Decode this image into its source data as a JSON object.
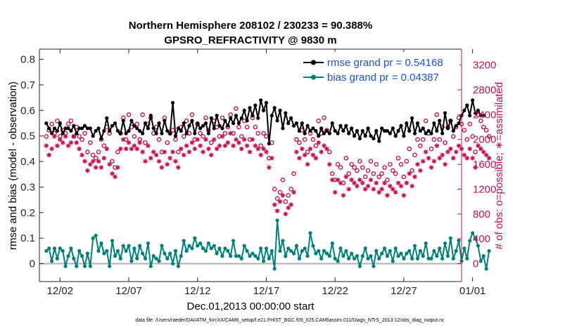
{
  "chart_data": {
    "type": "line",
    "title_line1": "Northern Hemisphere 208102 / 230233 = 90.388%",
    "title_line2": "GPSRO_REFRACTIVITY @ 9830 m",
    "xlabel": "Dec.01,2013 00:00:00 start",
    "ylabel_left": "rmse and bias (model - observation)",
    "ylabel_right": "# of obs: o=possible; ∗=assimilated",
    "xlim": [
      0.5,
      31.2
    ],
    "ylim_left": [
      -0.07,
      0.84
    ],
    "ylim_right": [
      -288,
      3456
    ],
    "x_tick_values": [
      2,
      7,
      12,
      17,
      22,
      27,
      32
    ],
    "x_tick_labels": [
      "12/02",
      "12/07",
      "12/12",
      "12/17",
      "12/22",
      "12/27",
      "01/01"
    ],
    "y_left_ticks": [
      "0",
      "0.1",
      "0.2",
      "0.3",
      "0.4",
      "0.5",
      "0.6",
      "0.7",
      "0.8"
    ],
    "y_left_tick_values": [
      0,
      0.1,
      0.2,
      0.3,
      0.4,
      0.5,
      0.6,
      0.7,
      0.8
    ],
    "y_right_ticks": [
      "0",
      "400",
      "800",
      "1200",
      "1600",
      "2000",
      "2400",
      "2800",
      "3200"
    ],
    "y_right_tick_values": [
      0,
      400,
      800,
      1200,
      1600,
      2000,
      2400,
      2800,
      3200
    ],
    "legend_position": "top-right",
    "colors": {
      "rmse": "#000000",
      "bias": "#00807a",
      "right_axis": "#c8104d",
      "legend_text": "#1a53d8"
    },
    "series": [
      {
        "name": "rmse grand pr = 0.54168",
        "axis": "left",
        "values": [
          0.55,
          0.53,
          0.51,
          0.53,
          0.52,
          0.55,
          0.51,
          0.53,
          0.53,
          0.52,
          0.54,
          0.51,
          0.53,
          0.53,
          0.54,
          0.53,
          0.53,
          0.5,
          0.52,
          0.53,
          0.49,
          0.52,
          0.57,
          0.52,
          0.54,
          0.55,
          0.52,
          0.51,
          0.56,
          0.51,
          0.52,
          0.56,
          0.54,
          0.53,
          0.52,
          0.51,
          0.55,
          0.53,
          0.58,
          0.53,
          0.51,
          0.55,
          0.51,
          0.56,
          0.52,
          0.51,
          0.63,
          0.5,
          0.53,
          0.52,
          0.55,
          0.51,
          0.54,
          0.56,
          0.51,
          0.55,
          0.53,
          0.54,
          0.55,
          0.51,
          0.57,
          0.53,
          0.58,
          0.54,
          0.53,
          0.56,
          0.54,
          0.57,
          0.55,
          0.58,
          0.55,
          0.57,
          0.6,
          0.56,
          0.61,
          0.58,
          0.62,
          0.57,
          0.64,
          0.6,
          0.63,
          0.47,
          0.58,
          0.61,
          0.56,
          0.6,
          0.53,
          0.59,
          0.55,
          0.57,
          0.54,
          0.55,
          0.52,
          0.55,
          0.51,
          0.54,
          0.52,
          0.53,
          0.52,
          0.5,
          0.53,
          0.51,
          0.52,
          0.51,
          0.55,
          0.52,
          0.51,
          0.54,
          0.52,
          0.54,
          0.51,
          0.53,
          0.5,
          0.52,
          0.49,
          0.52,
          0.5,
          0.53,
          0.5,
          0.49,
          0.52,
          0.48,
          0.53,
          0.52,
          0.52,
          0.51,
          0.53,
          0.5,
          0.52,
          0.54,
          0.5,
          0.55,
          0.52,
          0.57,
          0.51,
          0.55,
          0.52,
          0.53,
          0.51,
          0.52,
          0.51,
          0.55,
          0.52,
          0.56,
          0.51,
          0.59,
          0.53,
          0.56,
          0.52,
          0.54,
          0.55,
          0.58,
          0.6,
          0.62,
          0.58,
          0.64,
          0.59,
          0.6,
          0.58,
          0.58
        ]
      },
      {
        "name": "bias grand pr = 0.04387",
        "axis": "left",
        "values": [
          0.05,
          0.06,
          0.01,
          0.06,
          0.02,
          0.06,
          0.05,
          -0.01,
          0.03,
          0.06,
          0.02,
          -0.01,
          0.05,
          0.03,
          -0.01,
          0.04,
          -0.01,
          0.1,
          0.11,
          0.05,
          0.08,
          0.04,
          0.05,
          -0.01,
          0.09,
          0.03,
          0.05,
          0.02,
          0.07,
          0.05,
          0.07,
          0.01,
          0.06,
          0.02,
          0.07,
          0.04,
          0.02,
          0.08,
          -0.01,
          0.03,
          0.02,
          0.01,
          0.07,
          0.04,
          0.02,
          0.04,
          0.0,
          0.05,
          -0.01,
          0.03,
          0.09,
          0.05,
          0.07,
          0.06,
          0.1,
          0.07,
          0.08,
          0.06,
          0.05,
          0.08,
          0.06,
          0.07,
          0.04,
          0.06,
          0.03,
          0.06,
          0.05,
          0.03,
          0.09,
          0.03,
          0.03,
          0.02,
          0.07,
          0.05,
          0.03,
          0.04,
          0.03,
          0.02,
          0.06,
          0.01,
          0.06,
          0.02,
          0.05,
          -0.02,
          0.17,
          0.05,
          0.09,
          0.03,
          0.06,
          0.05,
          0.04,
          0.07,
          0.02,
          0.05,
          0.06,
          0.03,
          0.12,
          0.07,
          0.04,
          0.05,
          0.02,
          0.05,
          0.04,
          0.03,
          0.08,
          0.02,
          0.01,
          0.06,
          0.03,
          0.05,
          0.02,
          0.04,
          0.02,
          0.03,
          -0.01,
          0.03,
          0.06,
          0.02,
          0.03,
          -0.01,
          0.05,
          0.02,
          0.04,
          0.06,
          0.03,
          0.05,
          0.01,
          0.06,
          0.03,
          0.04,
          0.02,
          0.04,
          0.05,
          0.02,
          0.07,
          0.02,
          0.05,
          0.03,
          0.08,
          0.02,
          0.02,
          0.05,
          0.03,
          0.06,
          0.02,
          0.08,
          0.03,
          0.1,
          0.02,
          0.05,
          0.09,
          0.01,
          0.06,
          0.02,
          0.09,
          0.12,
          0.1,
          0.07,
          0.01,
          0.03,
          -0.02,
          0.05
        ]
      },
      {
        "name": "possible",
        "axis": "right",
        "marker": "circle",
        "values": [
          2050,
          2150,
          2250,
          2100,
          2300,
          2050,
          2150,
          2100,
          2250,
          2300,
          2050,
          2200,
          2050,
          2000,
          2100,
          1800,
          1950,
          1750,
          1700,
          1800,
          2000,
          1900,
          2200,
          2100,
          1650,
          1550,
          1800,
          2100,
          2350,
          2000,
          2400,
          2200,
          2050,
          2250,
          2000,
          2400,
          1950,
          2250,
          2350,
          2100,
          2200,
          2000,
          1800,
          2350,
          1950,
          2100,
          2150,
          2000,
          1800,
          2200,
          2050,
          2300,
          2100,
          2400,
          2000,
          2250,
          2100,
          2050,
          2350,
          2150,
          1950,
          2300,
          2200,
          2050,
          2350,
          2100,
          2200,
          2400,
          2100,
          2500,
          2200,
          2050,
          2300,
          2200,
          2000,
          2350,
          2200,
          2100,
          1900,
          2100,
          2050,
          1700,
          1950,
          1200,
          1050,
          1150,
          1350,
          1000,
          1100,
          1200,
          1450,
          2000,
          1950,
          2150,
          2000,
          1800,
          2100,
          2000,
          1900,
          2300,
          2100,
          2350,
          2150,
          1800,
          1450,
          1350,
          1600,
          1550,
          1300,
          1700,
          1450,
          1600,
          1550,
          1500,
          1650,
          1550,
          1400,
          1500,
          1650,
          1450,
          1600,
          1400,
          1450,
          1550,
          1350,
          1600,
          1500,
          1450,
          1700,
          1600,
          1400,
          1650,
          1850,
          1500,
          1750,
          2000,
          1900,
          2000,
          2300,
          2100,
          1850,
          2000,
          2400,
          2000,
          2200,
          1950,
          2200,
          2300,
          2050,
          2200,
          2350,
          2250,
          2150,
          2000,
          2250,
          2050,
          1800,
          2400,
          2300,
          2200,
          2150,
          2050
        ]
      },
      {
        "name": "assimilated",
        "axis": "right",
        "marker": "asterisk",
        "values": [
          1900,
          1750,
          1850,
          2050,
          1900,
          2000,
          1950,
          2050,
          1900,
          1950,
          2050,
          1950,
          1850,
          1750,
          1650,
          1500,
          1600,
          1650,
          1550,
          1650,
          1550,
          1700,
          1850,
          1600,
          1450,
          1400,
          1550,
          1850,
          2000,
          1850,
          1950,
          1850,
          1900,
          1850,
          1950,
          1800,
          1650,
          1900,
          1700,
          1800,
          1750,
          1650,
          1550,
          1800,
          1600,
          1700,
          1800,
          1650,
          1550,
          1850,
          1750,
          1900,
          1800,
          1950,
          1850,
          2000,
          1900,
          1800,
          2000,
          1850,
          1750,
          2000,
          1850,
          1900,
          2050,
          1900,
          1950,
          2100,
          1900,
          2000,
          1950,
          1850,
          2000,
          1900,
          1800,
          2000,
          1900,
          1850,
          1750,
          1850,
          1800,
          1550,
          1700,
          950,
          850,
          1000,
          1100,
          800,
          900,
          950,
          1150,
          1800,
          1700,
          1850,
          1750,
          1600,
          1850,
          1750,
          1700,
          1950,
          1800,
          1900,
          1850,
          1600,
          1350,
          1150,
          1350,
          1300,
          1100,
          1400,
          1200,
          1350,
          1300,
          1250,
          1350,
          1300,
          1200,
          1250,
          1350,
          1200,
          1300,
          1150,
          1200,
          1300,
          1100,
          1250,
          1200,
          1150,
          1300,
          1250,
          1100,
          1300,
          1450,
          1250,
          1400,
          1600,
          1500,
          1650,
          1800,
          1700,
          1550,
          1650,
          1900,
          1700,
          1750,
          1600,
          1800,
          1850,
          1700,
          1800,
          1900,
          1850,
          1750,
          1700,
          1850,
          1700,
          1550,
          1900,
          1850,
          1800,
          1750,
          1700
        ]
      }
    ]
  },
  "footer": "data file: /Users/raeder/DAI/ATM_forcXX/CAM6_setup/f.e21.FHIST_BGC.f09_025.CAM6assim.011/Diags_NTrS_2013-12/obs_diag_output.nc"
}
